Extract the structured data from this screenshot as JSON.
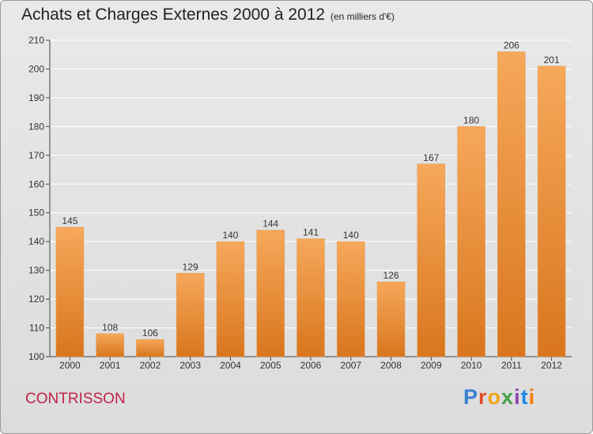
{
  "header": {
    "title": "Achats et Charges Externes 2000 à 2012",
    "subtitle": "(en milliers d'€)"
  },
  "footer": {
    "commune": "CONTRISSON",
    "logo_text": "Proxiti",
    "logo_colors": [
      "#3a7fd0",
      "#e64d2a",
      "#f2a316",
      "#43a047",
      "#8e44ad",
      "#1e88e5",
      "#f57c00"
    ]
  },
  "colors": {
    "bar_light": "#f6a85a",
    "bar_dark": "#d9761e",
    "grid": "#ffffff",
    "commune": "#c0234a"
  },
  "chart_data": {
    "type": "bar",
    "categories": [
      "2000",
      "2001",
      "2002",
      "2003",
      "2004",
      "2005",
      "2006",
      "2007",
      "2008",
      "2009",
      "2010",
      "2011",
      "2012"
    ],
    "values": [
      145,
      108,
      106,
      129,
      140,
      144,
      141,
      140,
      126,
      167,
      180,
      206,
      201
    ],
    "data_labels": [
      "145",
      "108",
      "106",
      "129",
      "140",
      "144",
      "141",
      "140",
      "126",
      "167",
      "180",
      "206",
      "201"
    ],
    "title": "Achats et Charges Externes 2000 à 2012",
    "subtitle": "(en milliers d'€)",
    "xlabel": "",
    "ylabel": "",
    "ylim": [
      100,
      210
    ],
    "yticks": [
      100,
      110,
      120,
      130,
      140,
      150,
      160,
      170,
      180,
      190,
      200,
      210
    ],
    "ytick_labels": [
      "100",
      "110",
      "120",
      "130",
      "140",
      "150",
      "160",
      "170",
      "180",
      "190",
      "200",
      "210"
    ],
    "grid": true,
    "legend": "none"
  }
}
